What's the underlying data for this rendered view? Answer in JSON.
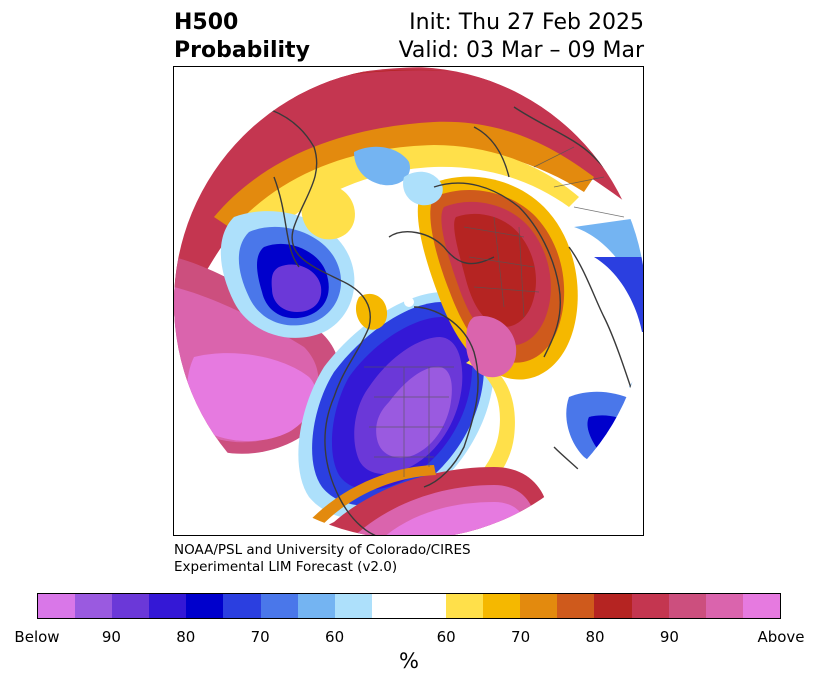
{
  "title": {
    "left_line1": "H500",
    "left_line2": "Probability",
    "right_line1": "Init: Thu 27 Feb 2025",
    "right_line2": "Valid: 03 Mar – 09 Mar"
  },
  "credit": {
    "line1": "NOAA/PSL and University of Colorado/CIRES",
    "line2": "Experimental LIM Forecast (v2.0)"
  },
  "colorbar": {
    "colors": [
      "#d977e8",
      "#9a5ae0",
      "#6b38d8",
      "#3418d6",
      "#0000cc",
      "#2b3fe0",
      "#4a77ea",
      "#74b4f2",
      "#ade0fb",
      "#ffffff",
      "#ffe04a",
      "#f5b800",
      "#e38a0e",
      "#cf5a1c",
      "#b52422",
      "#c43650",
      "#cc4f7e",
      "#da64ad",
      "#e67ae0"
    ],
    "tick_labels": [
      "Below",
      "90",
      "80",
      "70",
      "60",
      "60",
      "70",
      "80",
      "90",
      "Above"
    ],
    "unit_label": "%"
  },
  "map": {
    "projection": "north-polar-stereographic",
    "layers": [
      "probability-shading",
      "coastlines",
      "country-borders",
      "state-borders"
    ]
  }
}
